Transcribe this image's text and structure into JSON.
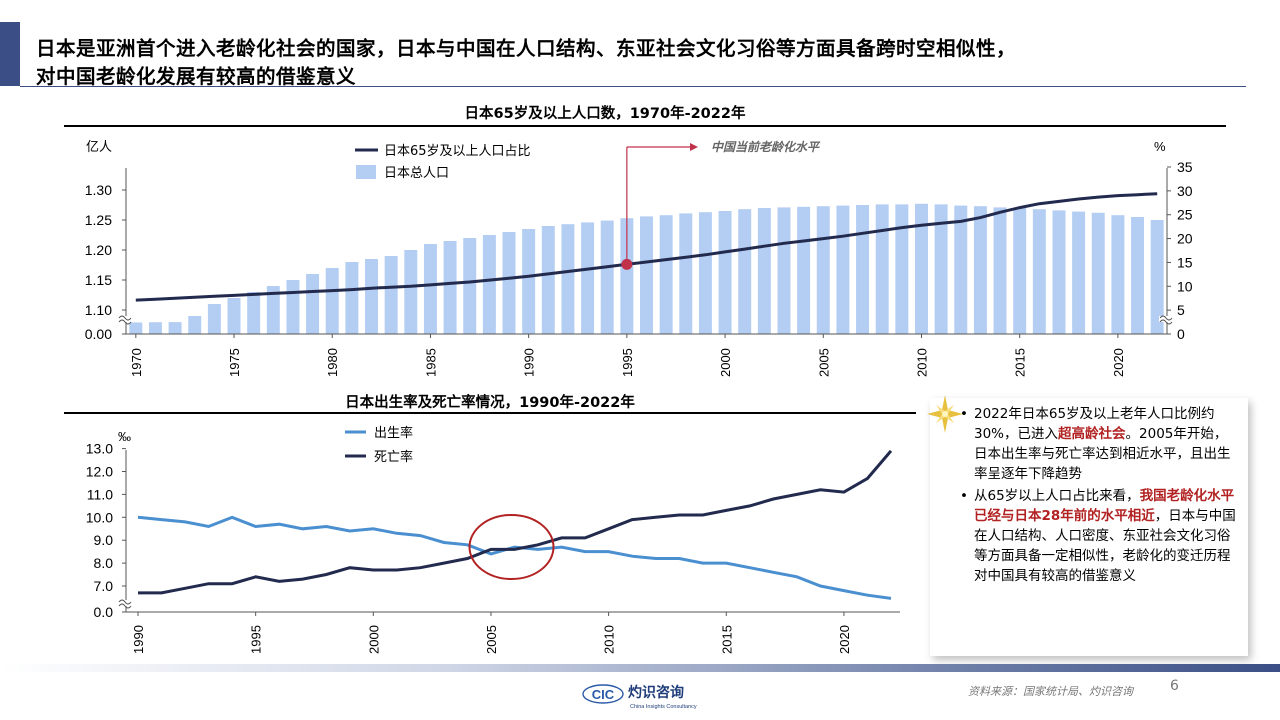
{
  "slide": {
    "title_line1": "日本是亚洲首个进入老龄化社会的国家，日本与中国在人口结构、东亚社会文化习俗等方面具备跨时空相似性，",
    "title_line2": "对中国老龄化发展有较高的借鉴意义",
    "source": "资料来源：国家统计局、灼识咨询",
    "page_number": "6",
    "logo_text": "灼识咨询",
    "logo_abbr": "CIC",
    "logo_sub": "China Insights Consultancy"
  },
  "colors": {
    "accent": "#3b4f86",
    "bar": "#b4cdf3",
    "line_dark": "#222a4e",
    "birth_line": "#4a8fd0",
    "death_line": "#222a4e",
    "highlight": "#c0314a",
    "circle": "#b22222"
  },
  "panel": {
    "bullet1_part1": "2022年日本65岁及以上老年人口比例约30%，已进入",
    "bullet1_highlight": "超高龄社会",
    "bullet1_part2": "。2005年开始，日本出生率与死亡率达到相近水平，且出生率呈逐年下降趋势",
    "bullet2_part1": "从65岁以上人口占比来看，",
    "bullet2_highlight": "我国老龄化水平已经与日本28年前的水平相近",
    "bullet2_part2": "，日本与中国在人口结构、人口密度、东亚社会文化习俗等方面具备一定相似性，老龄化的变迁历程对中国具有较高的借鉴意义",
    "star_icon": "gold-star-icon"
  },
  "chart_data": [
    {
      "type": "bar",
      "title": "日本65岁及以上人口数，1970年-2022年",
      "left_unit": "亿人",
      "right_unit": "%",
      "x": [
        1970,
        1971,
        1972,
        1973,
        1974,
        1975,
        1976,
        1977,
        1978,
        1979,
        1980,
        1981,
        1982,
        1983,
        1984,
        1985,
        1986,
        1987,
        1988,
        1989,
        1990,
        1991,
        1992,
        1993,
        1994,
        1995,
        1996,
        1997,
        1998,
        1999,
        2000,
        2001,
        2002,
        2003,
        2004,
        2005,
        2006,
        2007,
        2008,
        2009,
        2010,
        2011,
        2012,
        2013,
        2014,
        2015,
        2016,
        2017,
        2018,
        2019,
        2020,
        2021,
        2022
      ],
      "x_tick_labels": [
        "1970",
        "1975",
        "1980",
        "1985",
        "1990",
        "1995",
        "2000",
        "2005",
        "2010",
        "2015",
        "2020"
      ],
      "left_tick_labels": [
        "0.00",
        "1.10",
        "1.15",
        "1.20",
        "1.25",
        "1.30"
      ],
      "right_tick_labels": [
        "0",
        "5",
        "10",
        "15",
        "20",
        "25",
        "30",
        "35"
      ],
      "left_axis_break": true,
      "series": [
        {
          "name": "日本总人口",
          "kind": "bar",
          "axis": "left",
          "values": [
            1.04,
            1.06,
            1.07,
            1.09,
            1.11,
            1.12,
            1.13,
            1.14,
            1.15,
            1.16,
            1.17,
            1.18,
            1.185,
            1.19,
            1.2,
            1.21,
            1.215,
            1.22,
            1.225,
            1.23,
            1.235,
            1.24,
            1.243,
            1.246,
            1.249,
            1.253,
            1.256,
            1.258,
            1.261,
            1.263,
            1.265,
            1.268,
            1.27,
            1.271,
            1.272,
            1.273,
            1.274,
            1.275,
            1.276,
            1.276,
            1.277,
            1.276,
            1.274,
            1.273,
            1.271,
            1.27,
            1.268,
            1.266,
            1.264,
            1.262,
            1.258,
            1.255,
            1.25
          ]
        },
        {
          "name": "日本65岁及以上人口占比",
          "kind": "line",
          "axis": "right",
          "values": [
            7.1,
            7.3,
            7.5,
            7.7,
            7.9,
            8.1,
            8.3,
            8.5,
            8.7,
            8.9,
            9.1,
            9.3,
            9.6,
            9.8,
            10.0,
            10.3,
            10.6,
            10.9,
            11.3,
            11.7,
            12.1,
            12.6,
            13.1,
            13.6,
            14.1,
            14.6,
            15.1,
            15.6,
            16.1,
            16.6,
            17.2,
            17.8,
            18.4,
            19.0,
            19.5,
            20.0,
            20.5,
            21.1,
            21.7,
            22.3,
            22.8,
            23.2,
            23.6,
            24.4,
            25.5,
            26.5,
            27.3,
            27.8,
            28.3,
            28.7,
            29.0,
            29.2,
            29.4
          ]
        }
      ],
      "annotation": {
        "label": "中国当前老龄化水平",
        "year": 1995
      }
    },
    {
      "type": "line",
      "title": "日本出生率及死亡率情况，1990年-2022年",
      "unit": "‰",
      "x": [
        1990,
        1991,
        1992,
        1993,
        1994,
        1995,
        1996,
        1997,
        1998,
        1999,
        2000,
        2001,
        2002,
        2003,
        2004,
        2005,
        2006,
        2007,
        2008,
        2009,
        2010,
        2011,
        2012,
        2013,
        2014,
        2015,
        2016,
        2017,
        2018,
        2019,
        2020,
        2021,
        2022
      ],
      "x_tick_labels": [
        "1990",
        "1995",
        "2000",
        "2005",
        "2010",
        "2015",
        "2020"
      ],
      "y_tick_labels": [
        "0.0",
        "7.0",
        "8.0",
        "9.0",
        "10.0",
        "11.0",
        "12.0",
        "13.0"
      ],
      "axis_break": true,
      "series": [
        {
          "name": "出生率",
          "values": [
            10.0,
            9.9,
            9.8,
            9.6,
            10.0,
            9.6,
            9.7,
            9.5,
            9.6,
            9.4,
            9.5,
            9.3,
            9.2,
            8.9,
            8.8,
            8.4,
            8.7,
            8.6,
            8.7,
            8.5,
            8.5,
            8.3,
            8.2,
            8.2,
            8.0,
            8.0,
            7.8,
            7.6,
            7.4,
            7.0,
            6.8,
            6.6,
            6.3
          ]
        },
        {
          "name": "死亡率",
          "values": [
            6.7,
            6.7,
            6.9,
            7.1,
            7.1,
            7.4,
            7.2,
            7.3,
            7.5,
            7.8,
            7.7,
            7.7,
            7.8,
            8.0,
            8.2,
            8.6,
            8.6,
            8.8,
            9.1,
            9.1,
            9.5,
            9.9,
            10.0,
            10.1,
            10.1,
            10.3,
            10.5,
            10.8,
            11.0,
            11.2,
            11.1,
            11.7,
            12.9
          ]
        }
      ],
      "highlight_year": 2006
    }
  ]
}
